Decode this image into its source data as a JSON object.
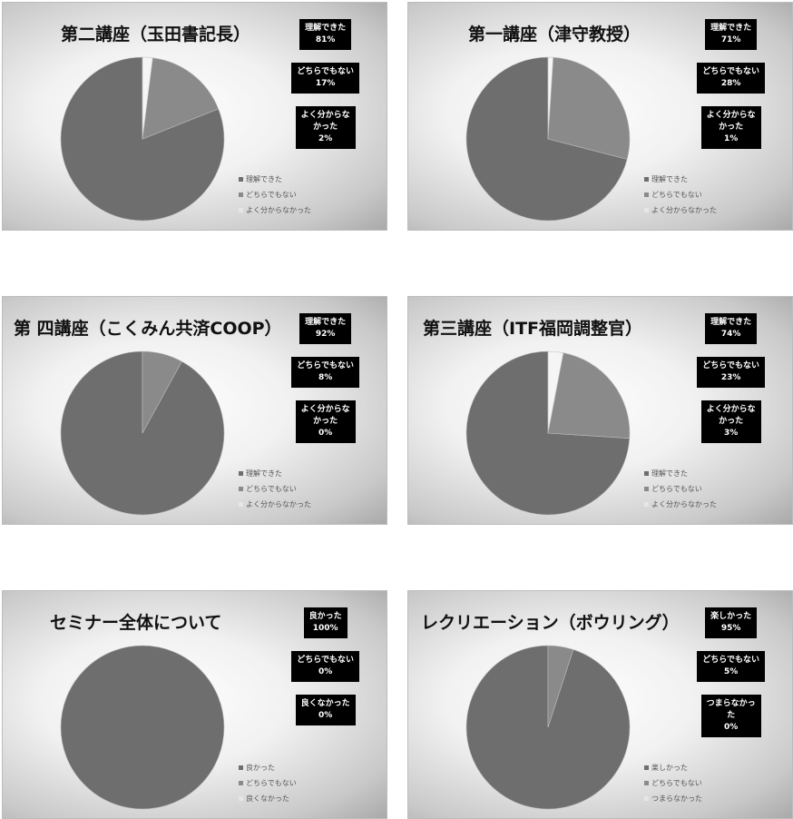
{
  "colors": {
    "slice_0": "#6e6e6e",
    "slice_1": "#8a8a8a",
    "slice_2": "#f5f5f5"
  },
  "chart_data": [
    {
      "type": "pie",
      "title": "第二講座（玉田書記長）",
      "series": [
        {
          "values": [
            81,
            17,
            2
          ]
        }
      ],
      "categories": [
        "理解できた",
        "どちらでもない",
        "よく分からなかった"
      ],
      "data_labels": [
        {
          "lines": [
            "理解できた"
          ],
          "pct": "81%"
        },
        {
          "lines": [
            "どちらでもない"
          ],
          "pct": "17%"
        },
        {
          "lines": [
            "よく分からな",
            "かった"
          ],
          "pct": "2%"
        }
      ],
      "legend_position": "bottom-right"
    },
    {
      "type": "pie",
      "title": "第一講座（津守教授）",
      "series": [
        {
          "values": [
            71,
            28,
            1
          ]
        }
      ],
      "categories": [
        "理解できた",
        "どちらでもない",
        "よく分からなかった"
      ],
      "data_labels": [
        {
          "lines": [
            "理解できた"
          ],
          "pct": "71%"
        },
        {
          "lines": [
            "どちらでもない"
          ],
          "pct": "28%"
        },
        {
          "lines": [
            "よく分からな",
            "かった"
          ],
          "pct": "1%"
        }
      ],
      "legend_position": "bottom-right"
    },
    {
      "type": "pie",
      "title": "第 四講座（こくみん共済COOP）",
      "series": [
        {
          "values": [
            92,
            8,
            0
          ]
        }
      ],
      "categories": [
        "理解できた",
        "どちらでもない",
        "よく分からなかった"
      ],
      "data_labels": [
        {
          "lines": [
            "理解できた"
          ],
          "pct": "92%"
        },
        {
          "lines": [
            "どちらでもない"
          ],
          "pct": "8%"
        },
        {
          "lines": [
            "よく分からな",
            "かった"
          ],
          "pct": "0%"
        }
      ],
      "legend_position": "bottom-right"
    },
    {
      "type": "pie",
      "title": "第三講座（ITF福岡調整官）",
      "series": [
        {
          "values": [
            74,
            23,
            3
          ]
        }
      ],
      "categories": [
        "理解できた",
        "どちらでもない",
        "よく分からなかった"
      ],
      "data_labels": [
        {
          "lines": [
            "理解できた"
          ],
          "pct": "74%"
        },
        {
          "lines": [
            "どちらでもない"
          ],
          "pct": "23%"
        },
        {
          "lines": [
            "よく分からな",
            "かった"
          ],
          "pct": "3%"
        }
      ],
      "legend_position": "bottom-right"
    },
    {
      "type": "pie",
      "title": "セミナー全体について",
      "series": [
        {
          "values": [
            100,
            0,
            0
          ]
        }
      ],
      "categories": [
        "良かった",
        "どちらでもない",
        "良くなかった"
      ],
      "data_labels": [
        {
          "lines": [
            "良かった"
          ],
          "pct": "100%"
        },
        {
          "lines": [
            "どちらでもない"
          ],
          "pct": "0%"
        },
        {
          "lines": [
            "良くなかった"
          ],
          "pct": "0%"
        }
      ],
      "legend_position": "bottom-right"
    },
    {
      "type": "pie",
      "title": "レクリエーション（ボウリング）",
      "series": [
        {
          "values": [
            95,
            5,
            0
          ]
        }
      ],
      "categories": [
        "楽しかった",
        "どちらでもない",
        "つまらなかった"
      ],
      "data_labels": [
        {
          "lines": [
            "楽しかった"
          ],
          "pct": "95%"
        },
        {
          "lines": [
            "どちらでもない"
          ],
          "pct": "5%"
        },
        {
          "lines": [
            "つまらなかっ",
            "た"
          ],
          "pct": "0%"
        }
      ],
      "legend_position": "bottom-right"
    }
  ]
}
